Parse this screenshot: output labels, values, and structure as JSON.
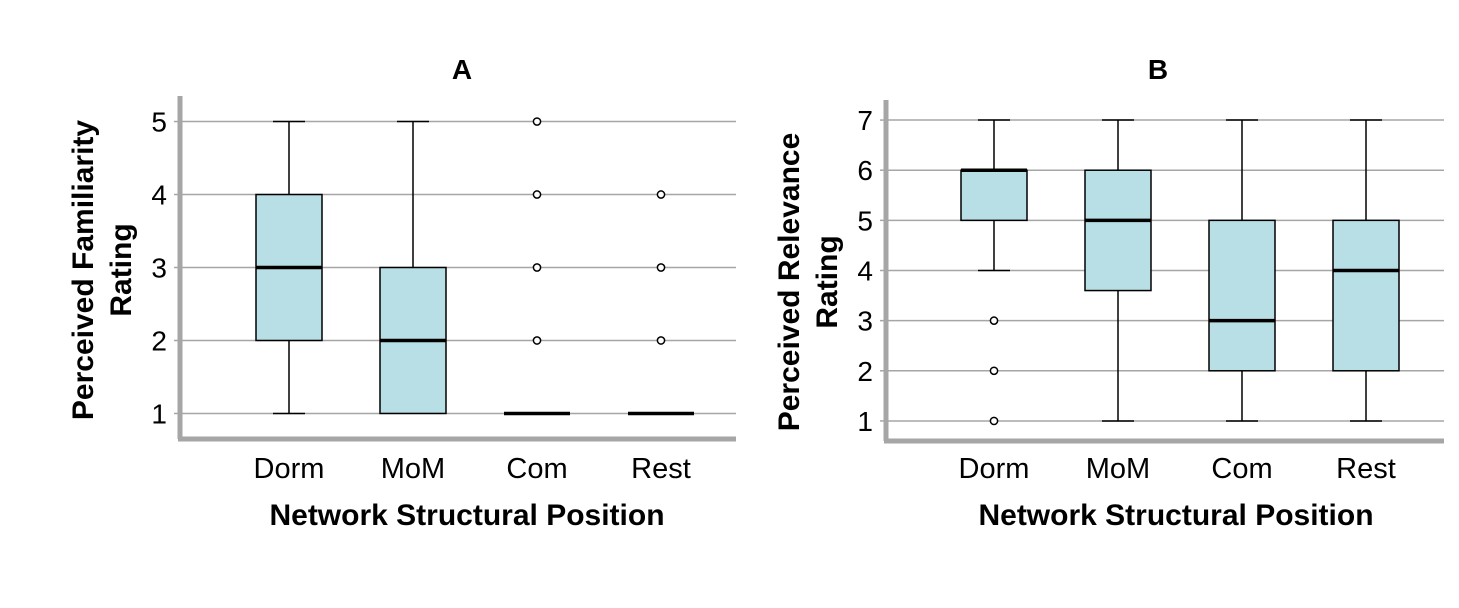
{
  "chart_data": [
    {
      "type": "box",
      "title": "A",
      "xlabel": "Network Structural Position",
      "ylabel_lines": [
        "Perceived Familiarity",
        "Rating"
      ],
      "categories": [
        "Dorm",
        "MoM",
        "Com",
        "Rest"
      ],
      "ylim": [
        0.65,
        5.35
      ],
      "yticks": [
        1,
        2,
        3,
        4,
        5
      ],
      "grid": true,
      "box_color": "#b8dfe6",
      "boxes": [
        {
          "category": "Dorm",
          "whisker_low": 1,
          "q1": 2,
          "median": 3,
          "q3": 4,
          "whisker_high": 5,
          "outliers": []
        },
        {
          "category": "MoM",
          "whisker_low": 1,
          "q1": 1,
          "median": 2,
          "q3": 3,
          "whisker_high": 5,
          "outliers": []
        },
        {
          "category": "Com",
          "whisker_low": 1,
          "q1": 1,
          "median": 1,
          "q3": 1,
          "whisker_high": 1,
          "outliers": [
            2,
            3,
            4,
            5
          ]
        },
        {
          "category": "Rest",
          "whisker_low": 1,
          "q1": 1,
          "median": 1,
          "q3": 1,
          "whisker_high": 1,
          "outliers": [
            2,
            3,
            4
          ]
        }
      ]
    },
    {
      "type": "box",
      "title": "B",
      "xlabel": "Network Structural Position",
      "ylabel_lines": [
        "Perceived Relevance",
        "Rating"
      ],
      "categories": [
        "Dorm",
        "MoM",
        "Com",
        "Rest"
      ],
      "ylim": [
        0.6,
        7.4
      ],
      "yticks": [
        1,
        2,
        3,
        4,
        5,
        6,
        7
      ],
      "grid": true,
      "box_color": "#b8dfe6",
      "boxes": [
        {
          "category": "Dorm",
          "whisker_low": 4,
          "q1": 5,
          "median": 6,
          "q3": 6,
          "whisker_high": 7,
          "outliers": [
            1,
            2,
            3
          ]
        },
        {
          "category": "MoM",
          "whisker_low": 1,
          "q1": 3.6,
          "median": 5,
          "q3": 6,
          "whisker_high": 7,
          "outliers": []
        },
        {
          "category": "Com",
          "whisker_low": 1,
          "q1": 2,
          "median": 3,
          "q3": 5,
          "whisker_high": 7,
          "outliers": []
        },
        {
          "category": "Rest",
          "whisker_low": 1,
          "q1": 2,
          "median": 4,
          "q3": 5,
          "whisker_high": 7,
          "outliers": []
        }
      ]
    }
  ]
}
